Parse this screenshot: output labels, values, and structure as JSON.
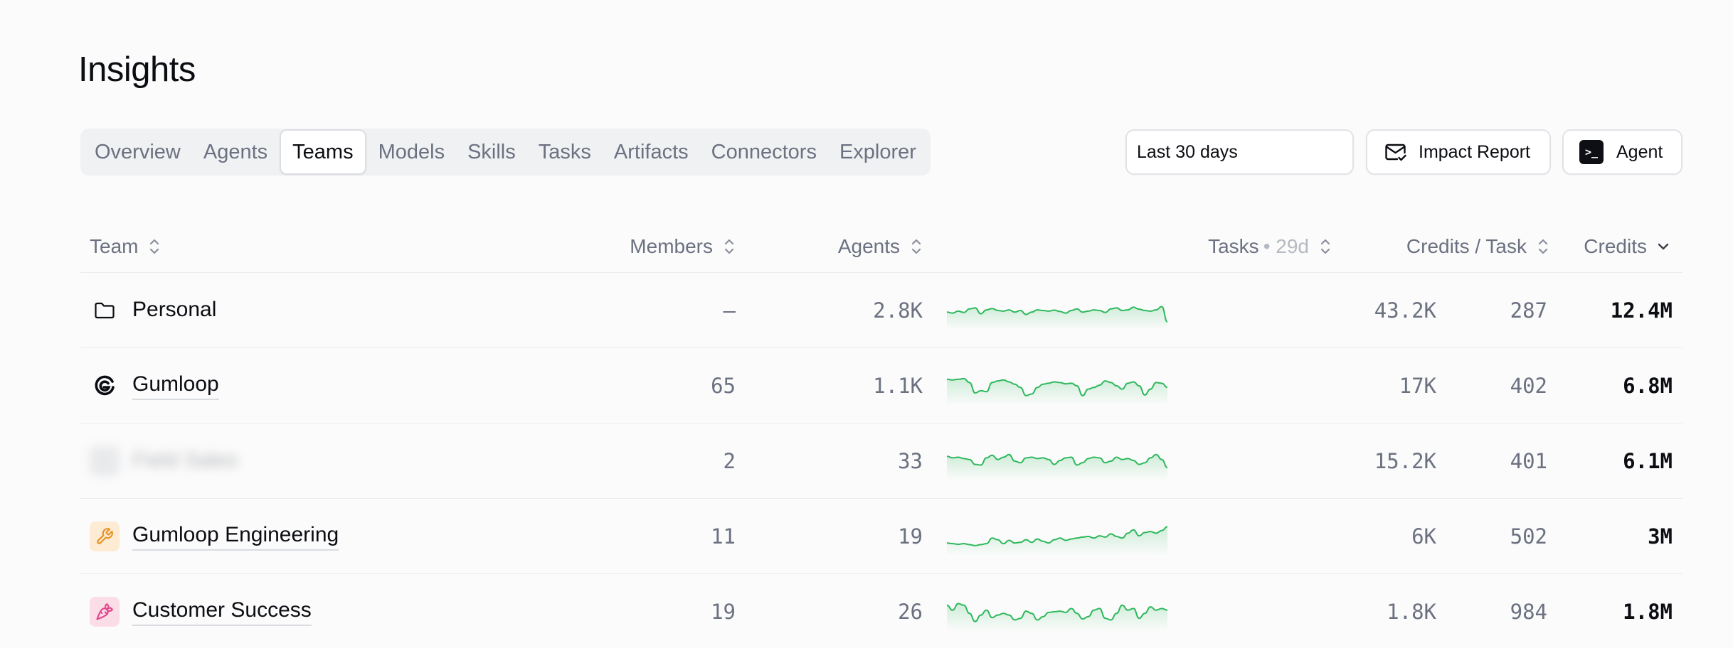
{
  "page": {
    "title": "Insights"
  },
  "tabs": [
    {
      "label": "Overview",
      "active": false
    },
    {
      "label": "Agents",
      "active": false
    },
    {
      "label": "Teams",
      "active": true
    },
    {
      "label": "Models",
      "active": false
    },
    {
      "label": "Skills",
      "active": false
    },
    {
      "label": "Tasks",
      "active": false
    },
    {
      "label": "Artifacts",
      "active": false
    },
    {
      "label": "Connectors",
      "active": false
    },
    {
      "label": "Explorer",
      "active": false
    }
  ],
  "controls": {
    "date_range": "Last 30 days",
    "impact_report_label": "Impact Report",
    "agent_label": "Agent",
    "agent_badge": ">_"
  },
  "table": {
    "headers": {
      "team": "Team",
      "members": "Members",
      "agents": "Agents",
      "tasks": "Tasks",
      "tasks_suffix": "• 29d",
      "credits_per_task": "Credits / Task",
      "credits": "Credits"
    },
    "sorted_column": "credits",
    "rows": [
      {
        "team": "Personal",
        "icon": "folder-icon",
        "members": "—",
        "agents": "2.8K",
        "tasks": "43.2K",
        "credits_per_task": "287",
        "credits": "12.4M"
      },
      {
        "team": "Gumloop",
        "icon": "gumloop-logo-icon",
        "members": "65",
        "agents": "1.1K",
        "tasks": "17K",
        "credits_per_task": "402",
        "credits": "6.8M"
      },
      {
        "team": "Field Sales",
        "icon": "blurred-team-icon",
        "redacted": true,
        "members": "2",
        "agents": "33",
        "tasks": "15.2K",
        "credits_per_task": "401",
        "credits": "6.1M"
      },
      {
        "team": "Gumloop Engineering",
        "icon": "wrench-icon",
        "members": "11",
        "agents": "19",
        "tasks": "6K",
        "credits_per_task": "502",
        "credits": "3M"
      },
      {
        "team": "Customer Success",
        "icon": "carrot-icon",
        "members": "19",
        "agents": "26",
        "tasks": "1.8K",
        "credits_per_task": "984",
        "credits": "1.8M"
      }
    ]
  },
  "colors": {
    "accent_green": "#2eb85c",
    "wrench_bg": "#fdebd3",
    "wrench_fg": "#e69224",
    "carrot_bg": "#fbdde8",
    "carrot_fg": "#e0468a"
  },
  "sparklines": [
    [
      0.55,
      0.58,
      0.52,
      0.56,
      0.45,
      0.42,
      0.6,
      0.48,
      0.44,
      0.5,
      0.52,
      0.48,
      0.55,
      0.5,
      0.62,
      0.55,
      0.48,
      0.5,
      0.52,
      0.49,
      0.53,
      0.58,
      0.5,
      0.45,
      0.55,
      0.52,
      0.48,
      0.5,
      0.56,
      0.45,
      0.42,
      0.5,
      0.48,
      0.4,
      0.46,
      0.5,
      0.52,
      0.48,
      0.38,
      0.85
    ],
    [
      0.3,
      0.32,
      0.3,
      0.28,
      0.4,
      0.72,
      0.65,
      0.68,
      0.4,
      0.35,
      0.32,
      0.38,
      0.45,
      0.55,
      0.8,
      0.75,
      0.55,
      0.45,
      0.42,
      0.38,
      0.4,
      0.44,
      0.42,
      0.5,
      0.8,
      0.6,
      0.55,
      0.48,
      0.35,
      0.4,
      0.5,
      0.6,
      0.42,
      0.38,
      0.5,
      0.78,
      0.6,
      0.4,
      0.42,
      0.55
    ],
    [
      0.35,
      0.4,
      0.38,
      0.42,
      0.45,
      0.6,
      0.62,
      0.4,
      0.32,
      0.45,
      0.38,
      0.3,
      0.5,
      0.55,
      0.4,
      0.38,
      0.42,
      0.4,
      0.45,
      0.6,
      0.48,
      0.4,
      0.38,
      0.62,
      0.55,
      0.42,
      0.38,
      0.4,
      0.55,
      0.5,
      0.38,
      0.45,
      0.42,
      0.48,
      0.6,
      0.55,
      0.4,
      0.3,
      0.45,
      0.7
    ],
    [
      0.7,
      0.72,
      0.74,
      0.72,
      0.75,
      0.78,
      0.75,
      0.72,
      0.55,
      0.6,
      0.72,
      0.62,
      0.7,
      0.68,
      0.6,
      0.68,
      0.58,
      0.65,
      0.7,
      0.6,
      0.55,
      0.62,
      0.58,
      0.55,
      0.52,
      0.5,
      0.55,
      0.48,
      0.52,
      0.42,
      0.5,
      0.55,
      0.4,
      0.3,
      0.48,
      0.38,
      0.35,
      0.4,
      0.32,
      0.2
    ],
    [
      0.3,
      0.45,
      0.25,
      0.3,
      0.55,
      0.8,
      0.6,
      0.45,
      0.68,
      0.6,
      0.55,
      0.6,
      0.75,
      0.7,
      0.48,
      0.55,
      0.75,
      0.65,
      0.52,
      0.5,
      0.48,
      0.52,
      0.4,
      0.55,
      0.72,
      0.65,
      0.45,
      0.4,
      0.7,
      0.75,
      0.55,
      0.3,
      0.45,
      0.4,
      0.7,
      0.55,
      0.35,
      0.45,
      0.4,
      0.45
    ]
  ]
}
